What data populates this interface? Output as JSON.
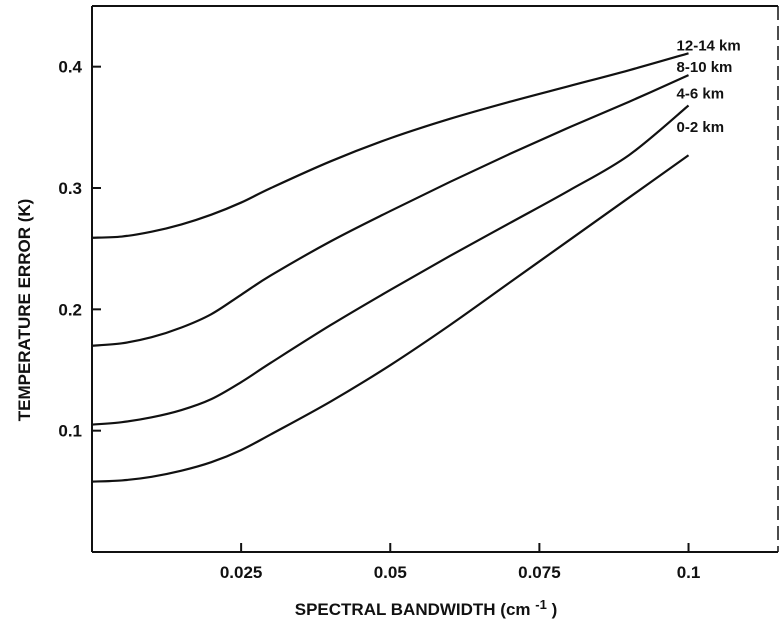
{
  "chart_data": {
    "type": "line",
    "title": "",
    "xlabel": "SPECTRAL BANDWIDTH (cm",
    "xlabel_superscript": "-1",
    "xlabel_suffix": ")",
    "ylabel": "TEMPERATURE  ERROR (K)",
    "xlim": [
      0,
      0.115
    ],
    "ylim": [
      0,
      0.45
    ],
    "xticks": [
      0.025,
      0.05,
      0.075,
      0.1
    ],
    "xtick_labels": [
      "0.025",
      "0.05",
      "0.075",
      "0.1"
    ],
    "yticks": [
      0.1,
      0.2,
      0.3,
      0.4
    ],
    "ytick_labels": [
      "0.1",
      "0.2",
      "0.3",
      "0.4"
    ],
    "grid": false,
    "legend": "labels at line ends",
    "series": [
      {
        "name": "12-14 km",
        "x": [
          0,
          0.005,
          0.01,
          0.015,
          0.02,
          0.025,
          0.03,
          0.04,
          0.05,
          0.06,
          0.07,
          0.08,
          0.09,
          0.1
        ],
        "y": [
          0.259,
          0.26,
          0.264,
          0.27,
          0.278,
          0.288,
          0.3,
          0.322,
          0.341,
          0.357,
          0.371,
          0.384,
          0.397,
          0.411
        ]
      },
      {
        "name": "8-10 km",
        "x": [
          0,
          0.005,
          0.01,
          0.015,
          0.02,
          0.025,
          0.03,
          0.04,
          0.05,
          0.06,
          0.07,
          0.08,
          0.09,
          0.1
        ],
        "y": [
          0.17,
          0.172,
          0.177,
          0.185,
          0.196,
          0.212,
          0.228,
          0.256,
          0.281,
          0.305,
          0.328,
          0.35,
          0.371,
          0.393
        ]
      },
      {
        "name": "4-6 km",
        "x": [
          0,
          0.005,
          0.01,
          0.015,
          0.02,
          0.025,
          0.03,
          0.04,
          0.05,
          0.06,
          0.07,
          0.08,
          0.09,
          0.1
        ],
        "y": [
          0.105,
          0.107,
          0.111,
          0.117,
          0.126,
          0.14,
          0.156,
          0.187,
          0.216,
          0.244,
          0.271,
          0.298,
          0.327,
          0.368
        ]
      },
      {
        "name": "0-2 km",
        "x": [
          0,
          0.005,
          0.01,
          0.015,
          0.02,
          0.025,
          0.03,
          0.04,
          0.05,
          0.06,
          0.07,
          0.08,
          0.09,
          0.1
        ],
        "y": [
          0.058,
          0.059,
          0.062,
          0.067,
          0.074,
          0.084,
          0.097,
          0.124,
          0.154,
          0.187,
          0.222,
          0.257,
          0.292,
          0.327
        ]
      }
    ]
  }
}
